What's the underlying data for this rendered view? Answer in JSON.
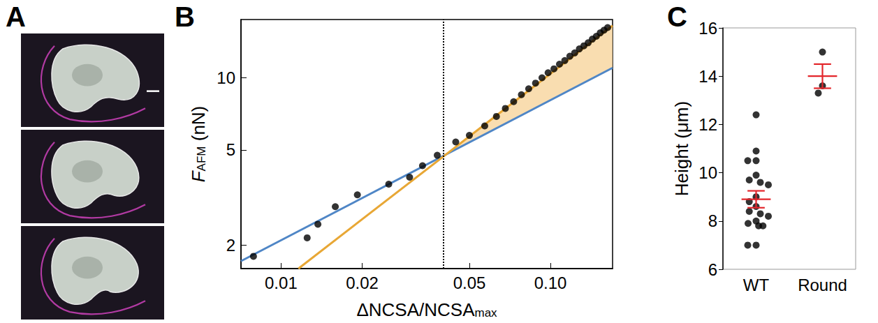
{
  "chart_data": [
    {
      "panel": "A",
      "type": "image",
      "frames": 3
    },
    {
      "panel": "B",
      "type": "scatter",
      "log": true,
      "xlabel": [
        {
          "text": "ΔNCSA/NCSA"
        },
        {
          "text": "max",
          "sub": true
        }
      ],
      "ylabel": [
        {
          "text": "F",
          "italic": true
        },
        {
          "text": "AFM",
          "sub": true
        },
        {
          "text": " (nN)"
        }
      ],
      "xlim": [
        0.0071,
        0.17
      ],
      "ylim": [
        1.6,
        17.5
      ],
      "xticks": [
        0.01,
        0.02,
        0.05,
        {
          "value": 0.1,
          "label": "0.10"
        }
      ],
      "yticks": [
        2,
        5,
        10
      ],
      "series": [
        {
          "type": "scatter",
          "color": "#000000",
          "marker": "circle",
          "x": [
            0.0079,
            0.0125,
            0.0137,
            0.0159,
            0.0192,
            0.0251,
            0.03,
            0.0335,
            0.038,
            0.0445,
            0.05,
            0.057,
            0.063,
            0.068,
            0.073,
            0.078,
            0.083,
            0.088,
            0.093,
            0.098,
            0.103,
            0.108,
            0.113,
            0.118,
            0.123,
            0.128,
            0.133,
            0.138,
            0.143,
            0.148,
            0.153,
            0.158,
            0.163
          ],
          "values": [
            1.8,
            2.15,
            2.45,
            2.9,
            3.25,
            3.6,
            3.85,
            4.3,
            4.75,
            5.4,
            5.75,
            6.3,
            6.9,
            7.45,
            7.95,
            8.5,
            9.0,
            9.5,
            10.0,
            10.5,
            10.9,
            11.4,
            11.8,
            12.3,
            12.7,
            13.2,
            13.6,
            14.0,
            14.5,
            14.9,
            15.4,
            15.8,
            16.2
          ]
        },
        {
          "type": "line",
          "color": "#4f86c6",
          "line_style": "solid",
          "x": [
            0.0071,
            0.17
          ],
          "values": [
            1.72,
            11.0
          ]
        },
        {
          "type": "line",
          "color": "#e8a735",
          "line_style": "solid",
          "x": [
            0.0116,
            0.17
          ],
          "values": [
            1.6,
            16.5
          ]
        }
      ],
      "shade": {
        "x": [
          0.041,
          0.17
        ],
        "color": "#f7d59c"
      },
      "vline": {
        "x": 0.041,
        "line_style": "dotted",
        "color": "#000000"
      }
    },
    {
      "panel": "C",
      "type": "scatter",
      "ylabel": "Height (μm)",
      "categories": [
        "WT",
        "Round"
      ],
      "values": [
        [
          12.4,
          10.9,
          10.5,
          10.5,
          9.9,
          9.7,
          9.6,
          9.5,
          9.0,
          8.8,
          8.6,
          8.4,
          8.3,
          8.2,
          8.0,
          7.9,
          7.8,
          7.8,
          7.0,
          7.0
        ],
        [
          15.0,
          13.6,
          13.3
        ]
      ],
      "color": "#000000",
      "marker": "circle",
      "mean": [
        8.9,
        14.0
      ],
      "sem": [
        0.35,
        0.5
      ],
      "error_color": "#e3262b",
      "ylim": [
        6,
        16
      ],
      "yticks": [
        6,
        8,
        10,
        12,
        14,
        16
      ]
    }
  ]
}
